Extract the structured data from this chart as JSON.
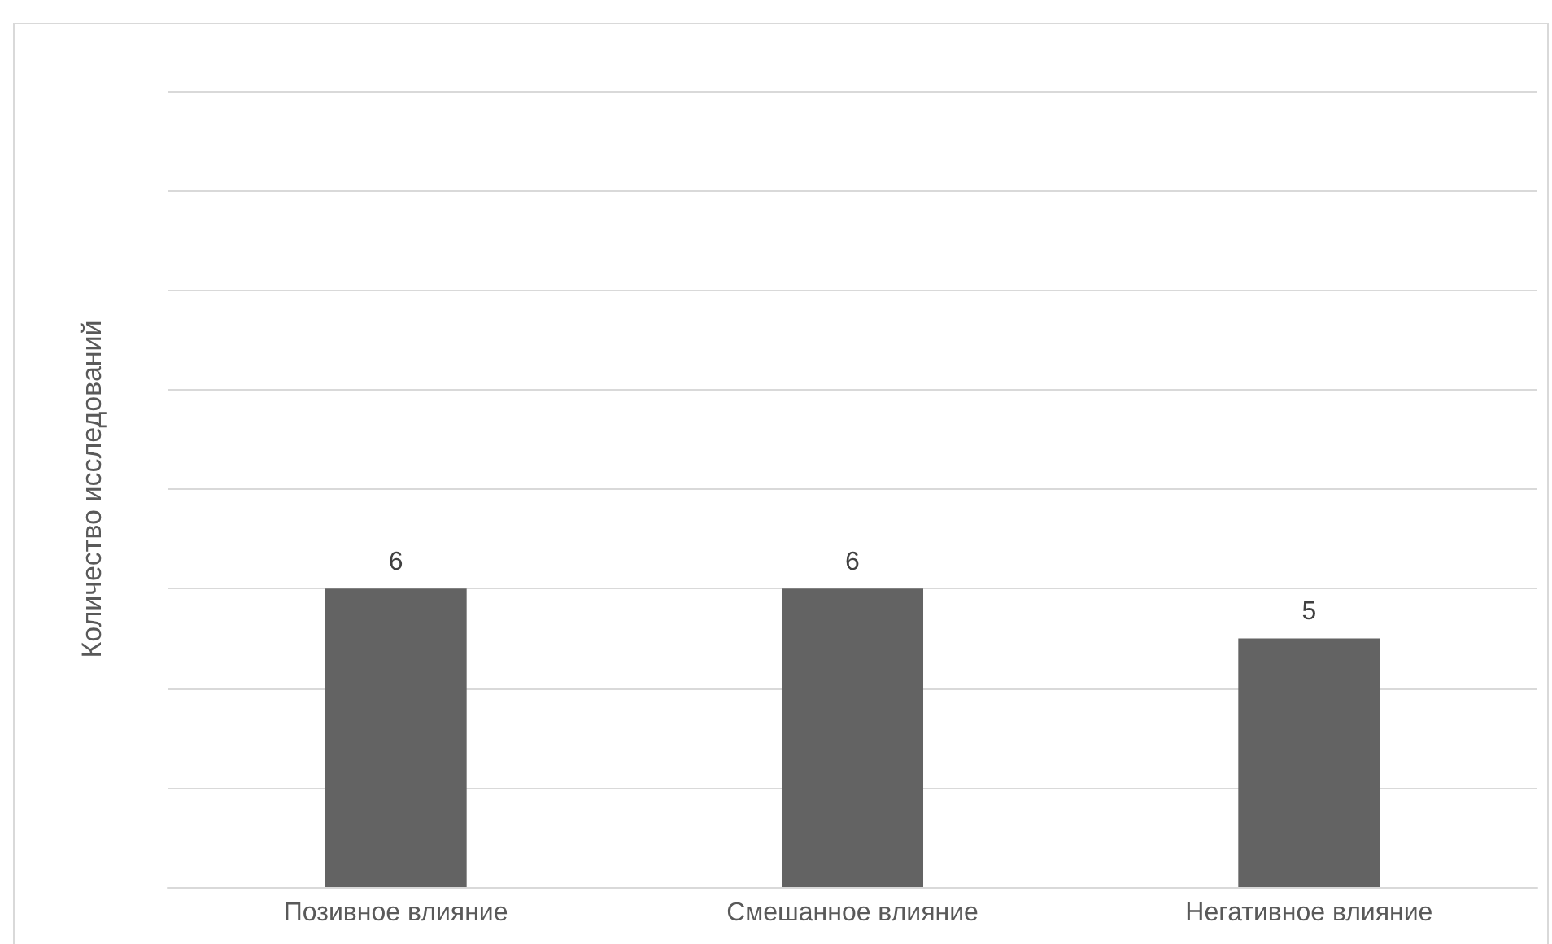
{
  "chart_data": {
    "type": "bar",
    "ylabel": "Количество исследований",
    "categories": [
      "Позивное влияние",
      "Смешанное влияние",
      "Негативное влияние"
    ],
    "values": [
      6,
      6,
      5
    ],
    "color": "#636363",
    "data_labels": true,
    "ylim": [
      0,
      16
    ],
    "yticks": [
      {
        "value": 0,
        "label": null
      },
      {
        "value": 2,
        "label": null
      },
      {
        "value": 4,
        "label": null
      },
      {
        "value": 6,
        "label": null
      },
      {
        "value": 8,
        "label": null
      },
      {
        "value": 10,
        "label": null
      },
      {
        "value": 12,
        "label": null
      },
      {
        "value": 14,
        "label": null
      },
      {
        "value": 16,
        "label": null
      }
    ],
    "grid": "y",
    "tick_labels": "x"
  }
}
